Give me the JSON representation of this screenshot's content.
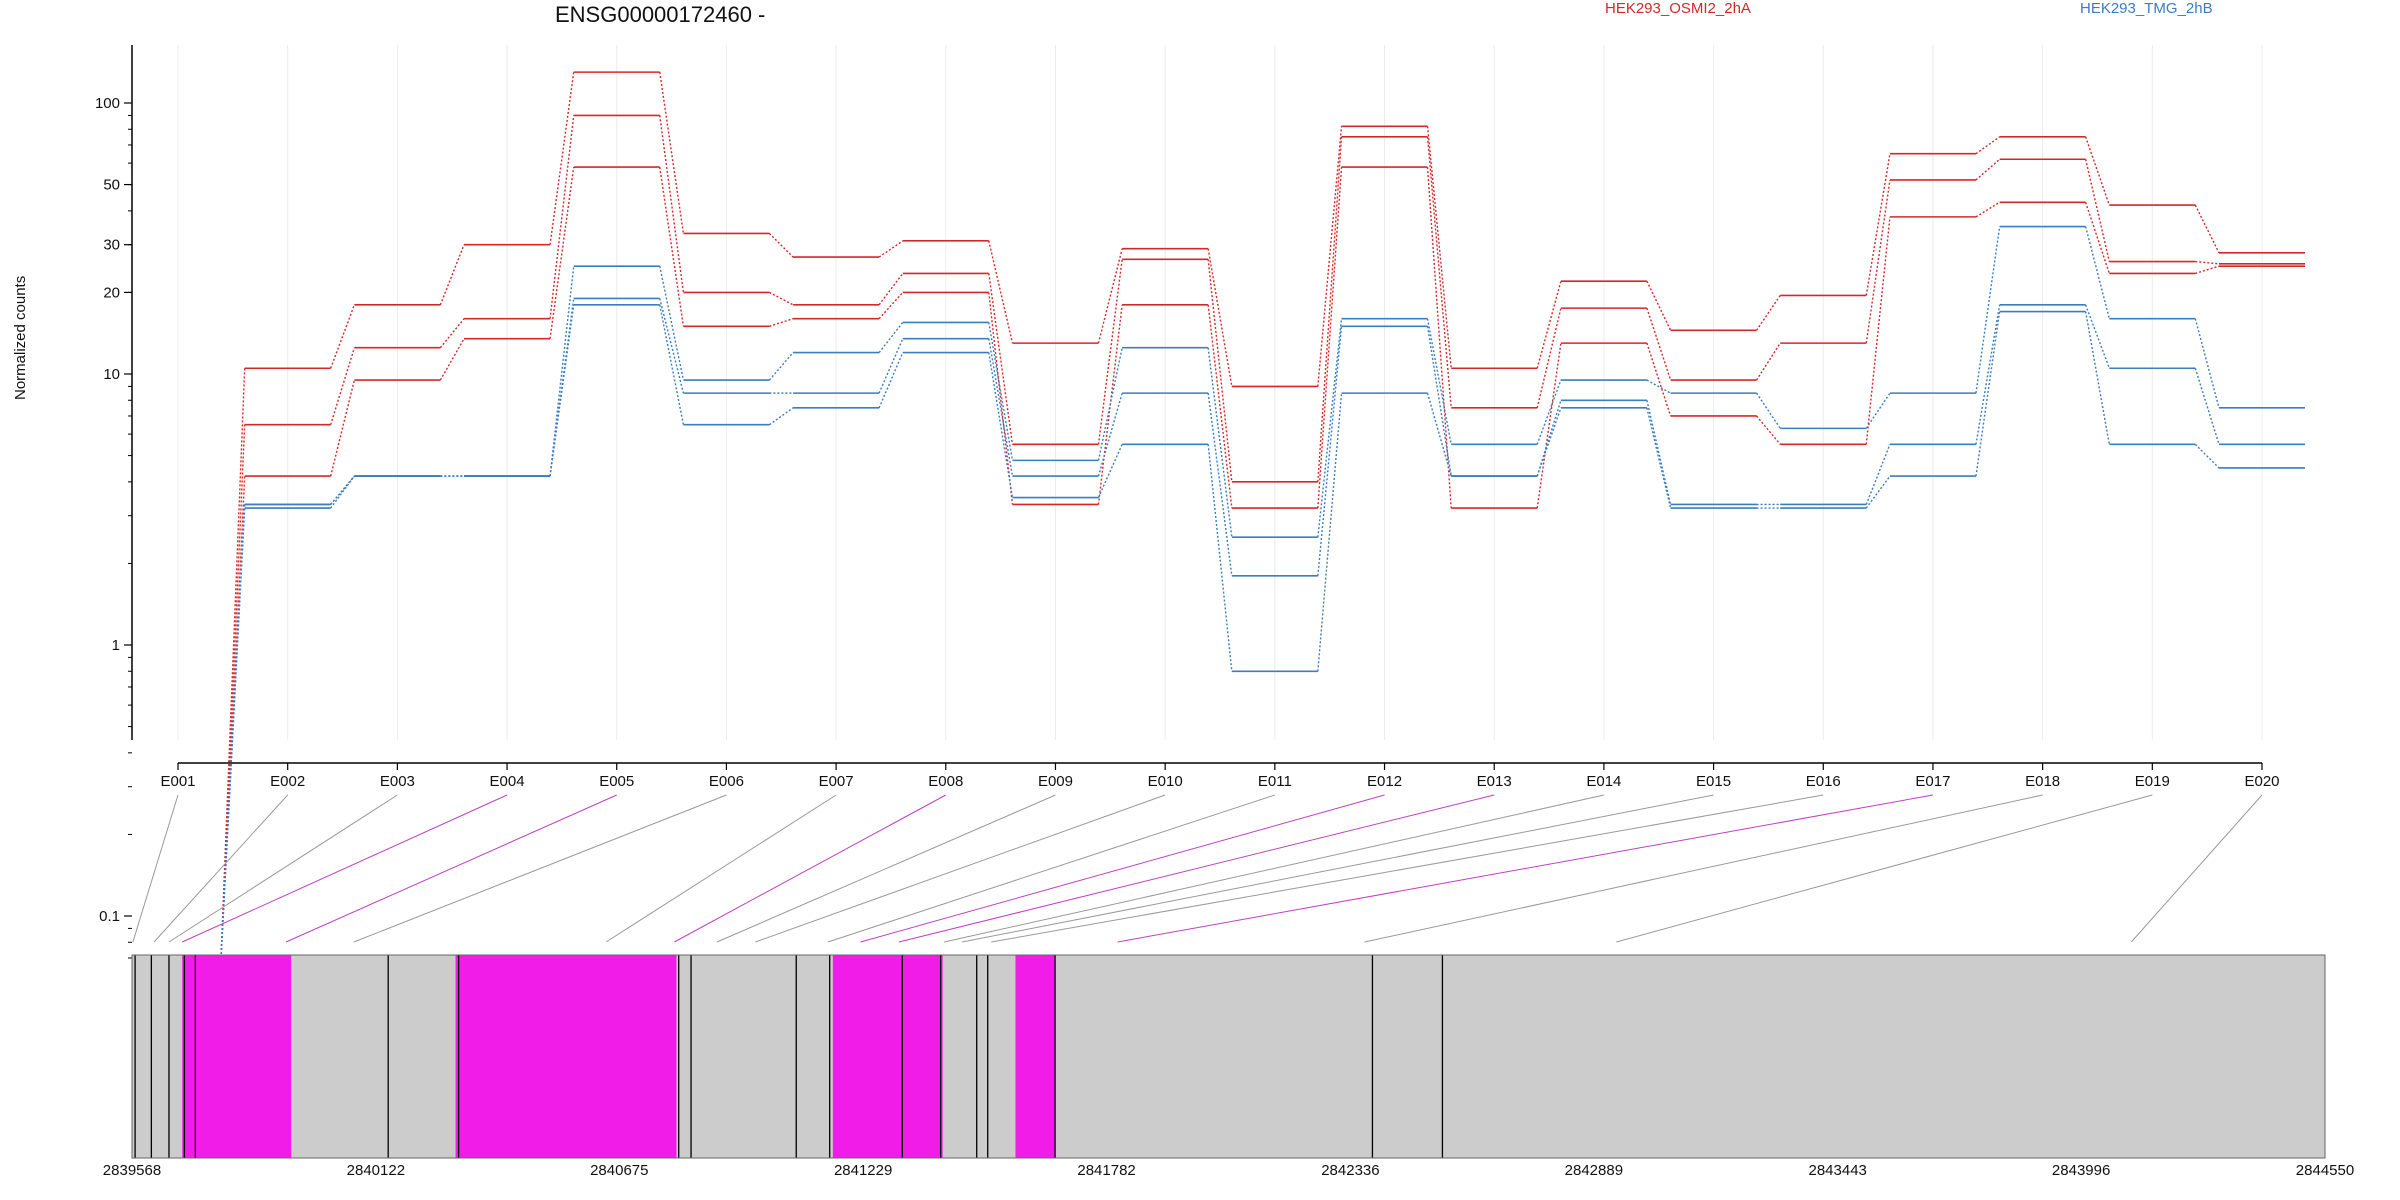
{
  "chart_data": {
    "type": "line",
    "title": "ENSG00000172460 -",
    "ylabel": "Normalized counts",
    "xlabel": "",
    "yscale": "log",
    "ylim": [
      0.07,
      160
    ],
    "grid": true,
    "yticks": [
      0.1,
      1,
      10,
      20,
      30,
      50,
      100
    ],
    "categories": [
      "E001",
      "E002",
      "E003",
      "E004",
      "E005",
      "E006",
      "E007",
      "E008",
      "E009",
      "E010",
      "E011",
      "E012",
      "E013",
      "E014",
      "E015",
      "E016",
      "E017",
      "E018",
      "E019",
      "E020"
    ],
    "series": [
      {
        "name": "HEK293_OSMI2_2hA",
        "color": "#d62728",
        "values": [
          0.07,
          10.5,
          18,
          30,
          130,
          33,
          27,
          31,
          13,
          29,
          9,
          82,
          10.5,
          22,
          14.5,
          19.5,
          65,
          75,
          42,
          28
        ]
      },
      {
        "color": "#d62728",
        "values": [
          0.07,
          6.5,
          12.5,
          16,
          90,
          20,
          18,
          23.5,
          5.5,
          26.5,
          4,
          75,
          7.5,
          17.5,
          9.5,
          13,
          52,
          62,
          26,
          25.5
        ]
      },
      {
        "color": "#d62728",
        "values": [
          0.07,
          4.2,
          9.5,
          13.5,
          58,
          15,
          16,
          20,
          3.3,
          18,
          3.2,
          58,
          3.2,
          13,
          7,
          5.5,
          38,
          43,
          23.5,
          25
        ]
      },
      {
        "name": "HEK293_TMG_2hB",
        "color": "#3a7dc0",
        "values": [
          0.07,
          3.3,
          4.2,
          4.2,
          25,
          9.5,
          12,
          15.5,
          4.8,
          12.5,
          2.5,
          16,
          5.5,
          9.5,
          8.5,
          6.3,
          8.5,
          35,
          16,
          7.5
        ]
      },
      {
        "color": "#3a7dc0",
        "values": [
          0.07,
          3.3,
          4.2,
          4.2,
          19,
          8.5,
          8.5,
          13.5,
          4.2,
          8.5,
          1.8,
          15,
          4.2,
          8,
          3.3,
          3.3,
          5.5,
          18,
          10.5,
          5.5
        ]
      },
      {
        "color": "#3a7dc0",
        "values": [
          0.07,
          3.2,
          4.2,
          4.2,
          18,
          6.5,
          7.5,
          12,
          3.5,
          5.5,
          0.8,
          8.5,
          4.2,
          7.5,
          3.2,
          3.2,
          4.2,
          17,
          5.5,
          4.5
        ]
      }
    ],
    "genome": {
      "ticks": [
        "2839568",
        "2840122",
        "2840675",
        "2841229",
        "2841782",
        "2842336",
        "2842889",
        "2843443",
        "2843996",
        "2844550"
      ],
      "range": [
        2839568,
        2844550
      ],
      "exon_starts": [
        2839570,
        2839618,
        2839652,
        2839682,
        2839918,
        2840072,
        2840645,
        2840800,
        2840897,
        2840984,
        2841149,
        2841223,
        2841310,
        2841413,
        2841454,
        2841520,
        2841807,
        2842368,
        2842940,
        2844110
      ],
      "highlighted_exons": [
        "E004",
        "E005",
        "E008",
        "E012",
        "E013",
        "E017"
      ],
      "highlight_color": "#f21ce8",
      "exon_color": "#cccccc",
      "blocks": [
        {
          "start": 2839568,
          "end": 2839618,
          "highlight": false
        },
        {
          "start": 2839618,
          "end": 2839652,
          "highlight": false
        },
        {
          "start": 2839652,
          "end": 2839682,
          "highlight": false
        },
        {
          "start": 2839682,
          "end": 2839930,
          "highlight": true
        },
        {
          "start": 2839930,
          "end": 2840303,
          "highlight": false
        },
        {
          "start": 2840303,
          "end": 2840805,
          "highlight": true
        },
        {
          "start": 2840805,
          "end": 2841160,
          "highlight": false
        },
        {
          "start": 2841160,
          "end": 2841410,
          "highlight": true
        },
        {
          "start": 2841410,
          "end": 2841575,
          "highlight": false
        },
        {
          "start": 2841575,
          "end": 2841665,
          "highlight": true
        },
        {
          "start": 2841665,
          "end": 2844550,
          "highlight": false
        }
      ],
      "boundaries": [
        2839575,
        2839612,
        2839652,
        2839687,
        2839712,
        2840150,
        2840310,
        2840810,
        2840838,
        2841077,
        2841153,
        2841318,
        2841405,
        2841487,
        2841512,
        2841665,
        2842386,
        2842545
      ]
    }
  }
}
